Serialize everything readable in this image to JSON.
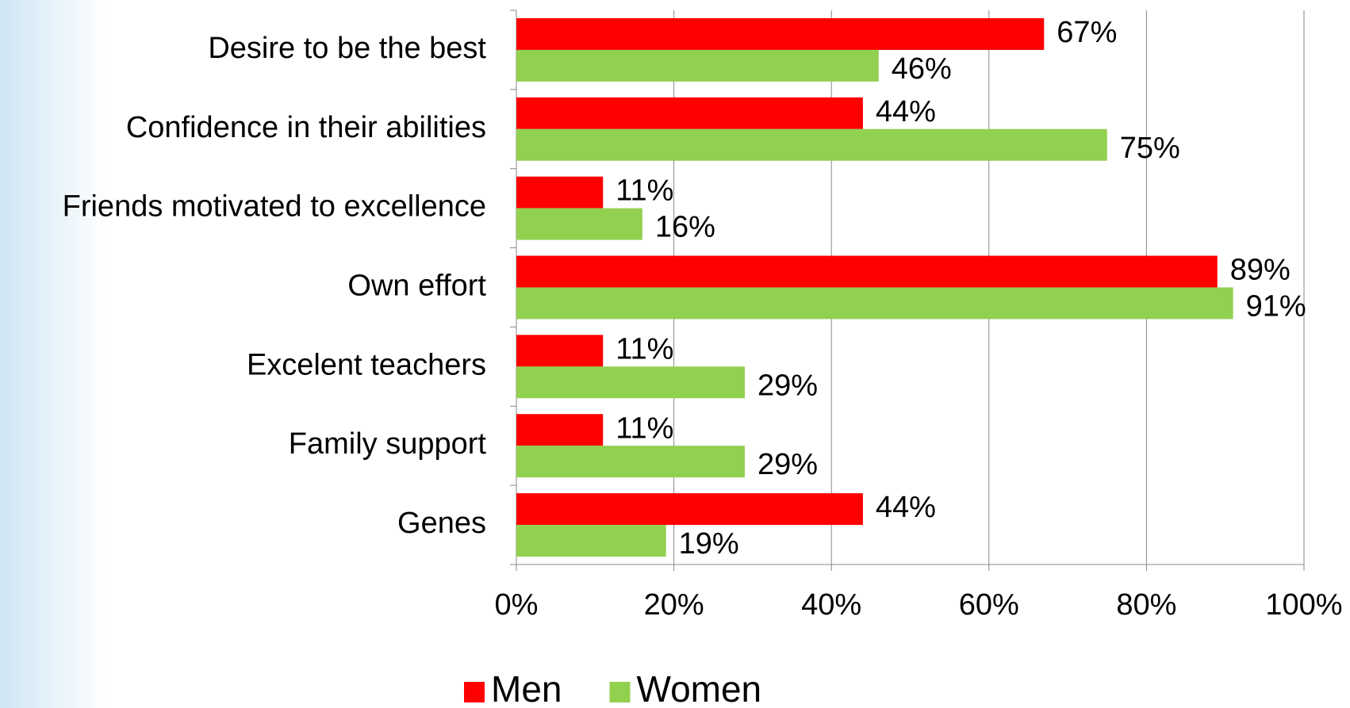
{
  "chart_data": {
    "type": "hbar",
    "categories": [
      "Desire to be the best",
      "Confidence in their abilities",
      "Friends motivated to excellence",
      "Own effort",
      "Excelent teachers",
      "Family support",
      "Genes"
    ],
    "series": [
      {
        "name": "Men",
        "color": "#ff0000",
        "values": [
          67,
          44,
          11,
          89,
          11,
          11,
          44
        ],
        "value_labels": [
          "67%",
          "44%",
          "11%",
          "89%",
          "11%",
          "11%",
          "44%"
        ]
      },
      {
        "name": "Women",
        "color": "#92d050",
        "values": [
          46,
          75,
          16,
          91,
          29,
          29,
          19
        ],
        "value_labels": [
          "46%",
          "75%",
          "16%",
          "91%",
          "29%",
          "29%",
          "19%"
        ]
      }
    ],
    "xlim": [
      0,
      100
    ],
    "xticks": [
      {
        "value": 0,
        "label": "0%"
      },
      {
        "value": 20,
        "label": "20%"
      },
      {
        "value": 40,
        "label": "40%"
      },
      {
        "value": 60,
        "label": "60%"
      },
      {
        "value": 80,
        "label": "80%"
      },
      {
        "value": 100,
        "label": "100%"
      }
    ],
    "grid": true,
    "legend": "bottom"
  }
}
